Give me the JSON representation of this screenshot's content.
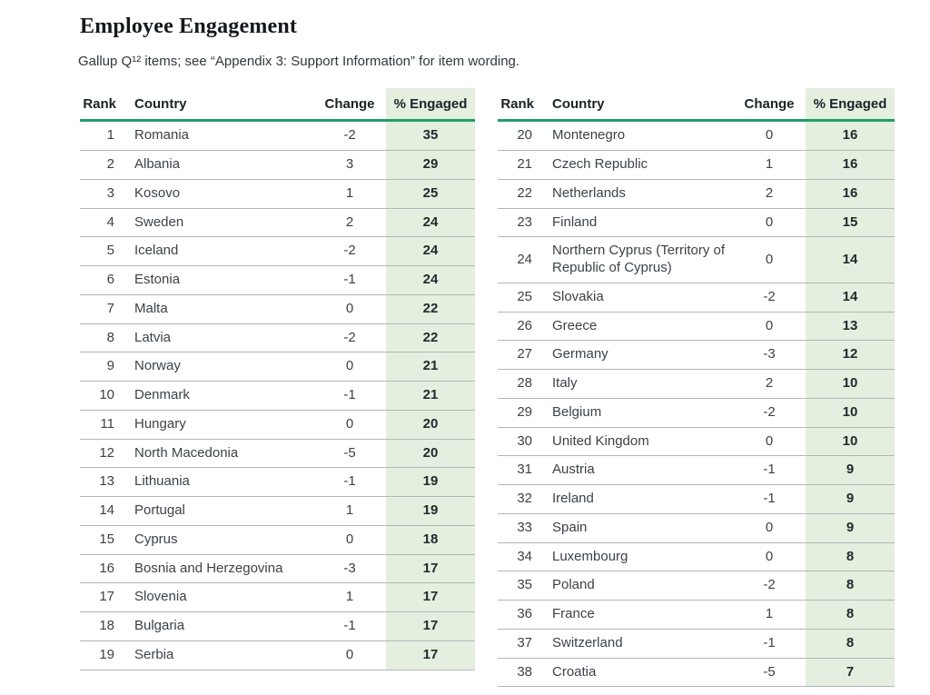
{
  "page": {
    "title": "Employee Engagement",
    "subtitle": "Gallup Q¹² items; see “Appendix 3: Support Information” for item wording."
  },
  "colors": {
    "engaged_band_bg": "#e4efe0",
    "header_rule_green": "#219e68",
    "row_divider_gray": "#b1b7b5",
    "text_dark": "#23292c"
  },
  "tables": [
    {
      "columns": [
        "Rank",
        "Country",
        "Change",
        "% Engaged"
      ],
      "rows": [
        {
          "rank": 1,
          "country": "Romania",
          "change": "-2",
          "engaged": 35
        },
        {
          "rank": 2,
          "country": "Albania",
          "change": "3",
          "engaged": 29
        },
        {
          "rank": 3,
          "country": "Kosovo",
          "change": "1",
          "engaged": 25
        },
        {
          "rank": 4,
          "country": "Sweden",
          "change": "2",
          "engaged": 24
        },
        {
          "rank": 5,
          "country": "Iceland",
          "change": "-2",
          "engaged": 24
        },
        {
          "rank": 6,
          "country": "Estonia",
          "change": "-1",
          "engaged": 24
        },
        {
          "rank": 7,
          "country": "Malta",
          "change": "0",
          "engaged": 22
        },
        {
          "rank": 8,
          "country": "Latvia",
          "change": "-2",
          "engaged": 22
        },
        {
          "rank": 9,
          "country": "Norway",
          "change": "0",
          "engaged": 21
        },
        {
          "rank": 10,
          "country": "Denmark",
          "change": "-1",
          "engaged": 21
        },
        {
          "rank": 11,
          "country": "Hungary",
          "change": "0",
          "engaged": 20
        },
        {
          "rank": 12,
          "country": "North Macedonia",
          "change": "-5",
          "engaged": 20
        },
        {
          "rank": 13,
          "country": "Lithuania",
          "change": "-1",
          "engaged": 19
        },
        {
          "rank": 14,
          "country": "Portugal",
          "change": "1",
          "engaged": 19
        },
        {
          "rank": 15,
          "country": "Cyprus",
          "change": "0",
          "engaged": 18
        },
        {
          "rank": 16,
          "country": "Bosnia and Herzegovina",
          "change": "-3",
          "engaged": 17
        },
        {
          "rank": 17,
          "country": "Slovenia",
          "change": "1",
          "engaged": 17
        },
        {
          "rank": 18,
          "country": "Bulgaria",
          "change": "-1",
          "engaged": 17
        },
        {
          "rank": 19,
          "country": "Serbia",
          "change": "0",
          "engaged": 17
        }
      ]
    },
    {
      "columns": [
        "Rank",
        "Country",
        "Change",
        "% Engaged"
      ],
      "rows": [
        {
          "rank": 20,
          "country": "Montenegro",
          "change": "0",
          "engaged": 16
        },
        {
          "rank": 21,
          "country": "Czech Republic",
          "change": "1",
          "engaged": 16
        },
        {
          "rank": 22,
          "country": "Netherlands",
          "change": "2",
          "engaged": 16
        },
        {
          "rank": 23,
          "country": "Finland",
          "change": "0",
          "engaged": 15
        },
        {
          "rank": 24,
          "country": "Northern Cyprus (Territory of Republic of Cyprus)",
          "change": "0",
          "engaged": 14
        },
        {
          "rank": 25,
          "country": "Slovakia",
          "change": "-2",
          "engaged": 14
        },
        {
          "rank": 26,
          "country": "Greece",
          "change": "0",
          "engaged": 13
        },
        {
          "rank": 27,
          "country": "Germany",
          "change": "-3",
          "engaged": 12
        },
        {
          "rank": 28,
          "country": "Italy",
          "change": "2",
          "engaged": 10
        },
        {
          "rank": 29,
          "country": "Belgium",
          "change": "-2",
          "engaged": 10
        },
        {
          "rank": 30,
          "country": "United Kingdom",
          "change": "0",
          "engaged": 10
        },
        {
          "rank": 31,
          "country": "Austria",
          "change": "-1",
          "engaged": 9
        },
        {
          "rank": 32,
          "country": "Ireland",
          "change": "-1",
          "engaged": 9
        },
        {
          "rank": 33,
          "country": "Spain",
          "change": "0",
          "engaged": 9
        },
        {
          "rank": 34,
          "country": "Luxembourg",
          "change": "0",
          "engaged": 8
        },
        {
          "rank": 35,
          "country": "Poland",
          "change": "-2",
          "engaged": 8
        },
        {
          "rank": 36,
          "country": "France",
          "change": "1",
          "engaged": 8
        },
        {
          "rank": 37,
          "country": "Switzerland",
          "change": "-1",
          "engaged": 8
        },
        {
          "rank": 38,
          "country": "Croatia",
          "change": "-5",
          "engaged": 7
        }
      ]
    }
  ]
}
